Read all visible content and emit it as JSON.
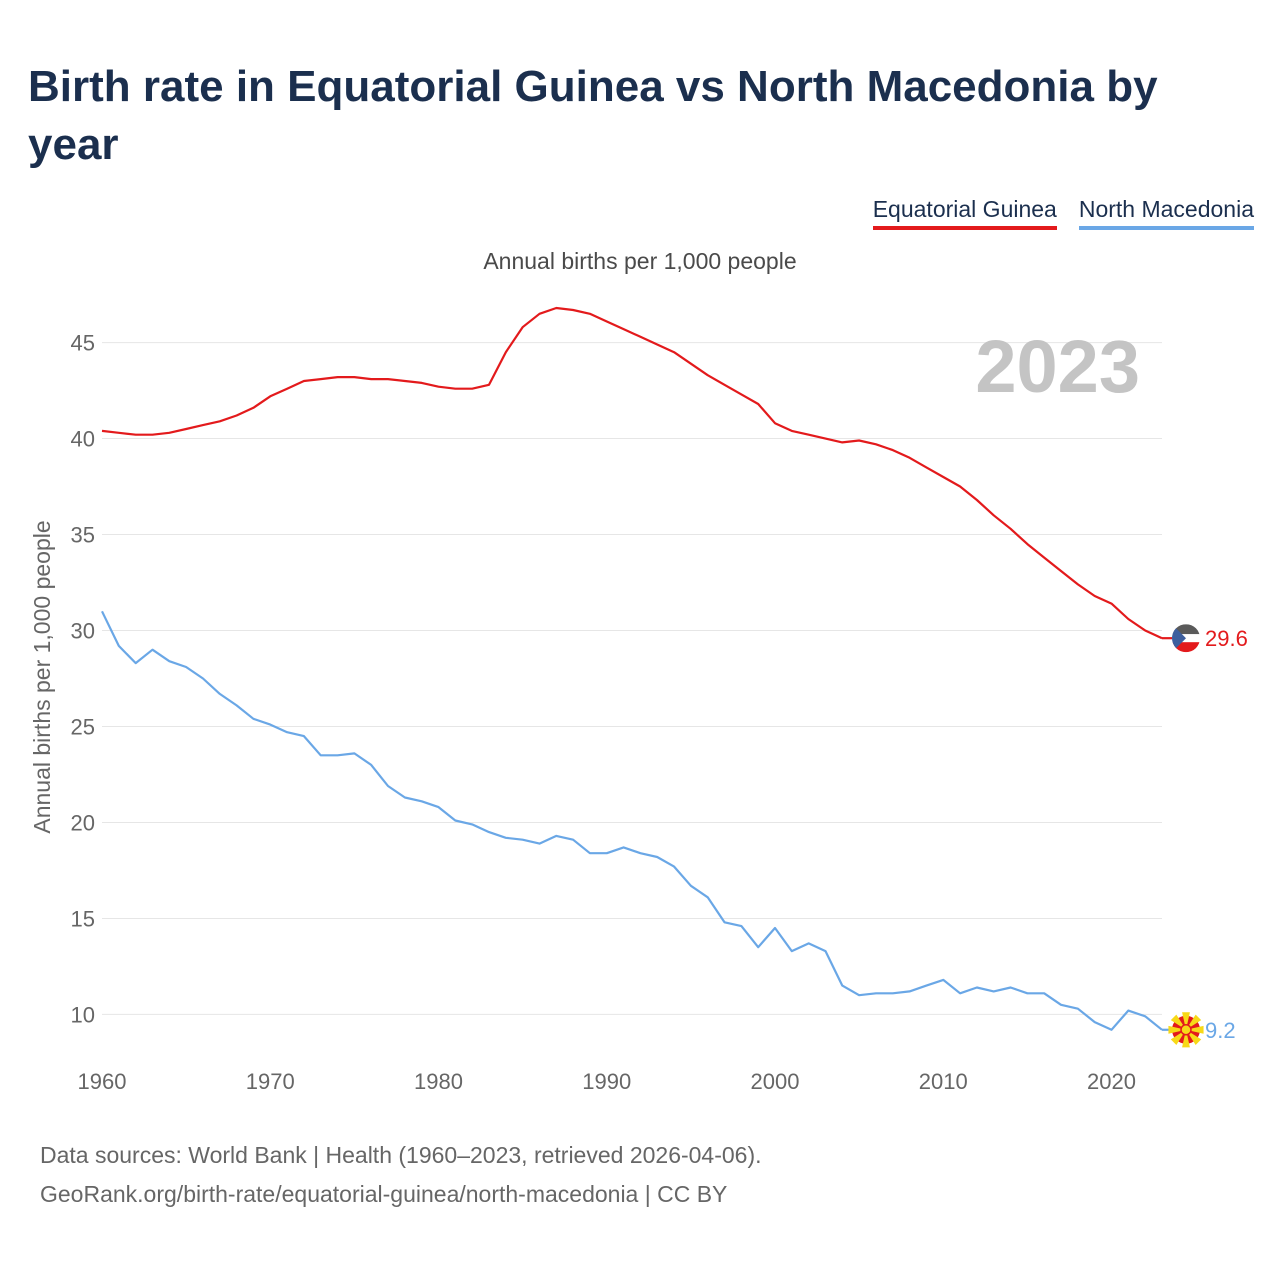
{
  "title": "Birth rate in Equatorial Guinea vs North Macedonia by year",
  "legend": {
    "items": [
      {
        "label": "Equatorial Guinea",
        "color": "#e31a1c"
      },
      {
        "label": "North Macedonia",
        "color": "#6aa7e6"
      }
    ]
  },
  "subtitle": "Annual births per 1,000 people",
  "footer": {
    "line1": "Data sources: World Bank | Health (1960–2023, retrieved 2026-04-06).",
    "line2": "GeoRank.org/birth-rate/equatorial-guinea/north-macedonia | CC BY"
  },
  "chart_data": {
    "type": "line",
    "year_label": "2023",
    "ylabel": "Annual births per 1,000 people",
    "xlim": [
      1960,
      2023
    ],
    "ylim": [
      7,
      48
    ],
    "yticks": [
      10,
      15,
      20,
      25,
      30,
      35,
      40,
      45
    ],
    "xticks": [
      1960,
      1970,
      1980,
      1990,
      2000,
      2010,
      2020
    ],
    "grid": true,
    "x": [
      1960,
      1961,
      1962,
      1963,
      1964,
      1965,
      1966,
      1967,
      1968,
      1969,
      1970,
      1971,
      1972,
      1973,
      1974,
      1975,
      1976,
      1977,
      1978,
      1979,
      1980,
      1981,
      1982,
      1983,
      1984,
      1985,
      1986,
      1987,
      1988,
      1989,
      1990,
      1991,
      1992,
      1993,
      1994,
      1995,
      1996,
      1997,
      1998,
      1999,
      2000,
      2001,
      2002,
      2003,
      2004,
      2005,
      2006,
      2007,
      2008,
      2009,
      2010,
      2011,
      2012,
      2013,
      2014,
      2015,
      2016,
      2017,
      2018,
      2019,
      2020,
      2021,
      2022,
      2023
    ],
    "series": [
      {
        "name": "Equatorial Guinea",
        "color": "#e31a1c",
        "end_label": "29.6",
        "values": [
          40.4,
          40.3,
          40.2,
          40.2,
          40.3,
          40.5,
          40.7,
          40.9,
          41.2,
          41.6,
          42.2,
          42.6,
          43.0,
          43.1,
          43.2,
          43.2,
          43.1,
          43.1,
          43.0,
          42.9,
          42.7,
          42.6,
          42.6,
          42.8,
          44.5,
          45.8,
          46.5,
          46.8,
          46.7,
          46.5,
          46.1,
          45.7,
          45.3,
          44.9,
          44.5,
          43.9,
          43.3,
          42.8,
          42.3,
          41.8,
          40.8,
          40.4,
          40.2,
          40.0,
          39.8,
          39.9,
          39.7,
          39.4,
          39.0,
          38.5,
          38.0,
          37.5,
          36.8,
          36.0,
          35.3,
          34.5,
          33.8,
          33.1,
          32.4,
          31.8,
          31.4,
          30.6,
          30.0,
          29.6
        ]
      },
      {
        "name": "North Macedonia",
        "color": "#6aa7e6",
        "end_label": "9.2",
        "values": [
          31.0,
          29.2,
          28.3,
          29.0,
          28.4,
          28.1,
          27.5,
          26.7,
          26.1,
          25.4,
          25.1,
          24.7,
          24.5,
          23.5,
          23.5,
          23.6,
          23.0,
          21.9,
          21.3,
          21.1,
          20.8,
          20.1,
          19.9,
          19.5,
          19.2,
          19.1,
          18.9,
          19.3,
          19.1,
          18.4,
          18.4,
          18.7,
          18.4,
          18.2,
          17.7,
          16.7,
          16.1,
          14.8,
          14.6,
          13.5,
          14.5,
          13.3,
          13.7,
          13.3,
          11.5,
          11.0,
          11.1,
          11.1,
          11.2,
          11.5,
          11.8,
          11.1,
          11.4,
          11.2,
          11.4,
          11.1,
          11.1,
          10.5,
          10.3,
          9.6,
          9.2,
          10.2,
          9.9,
          9.2
        ]
      }
    ]
  }
}
